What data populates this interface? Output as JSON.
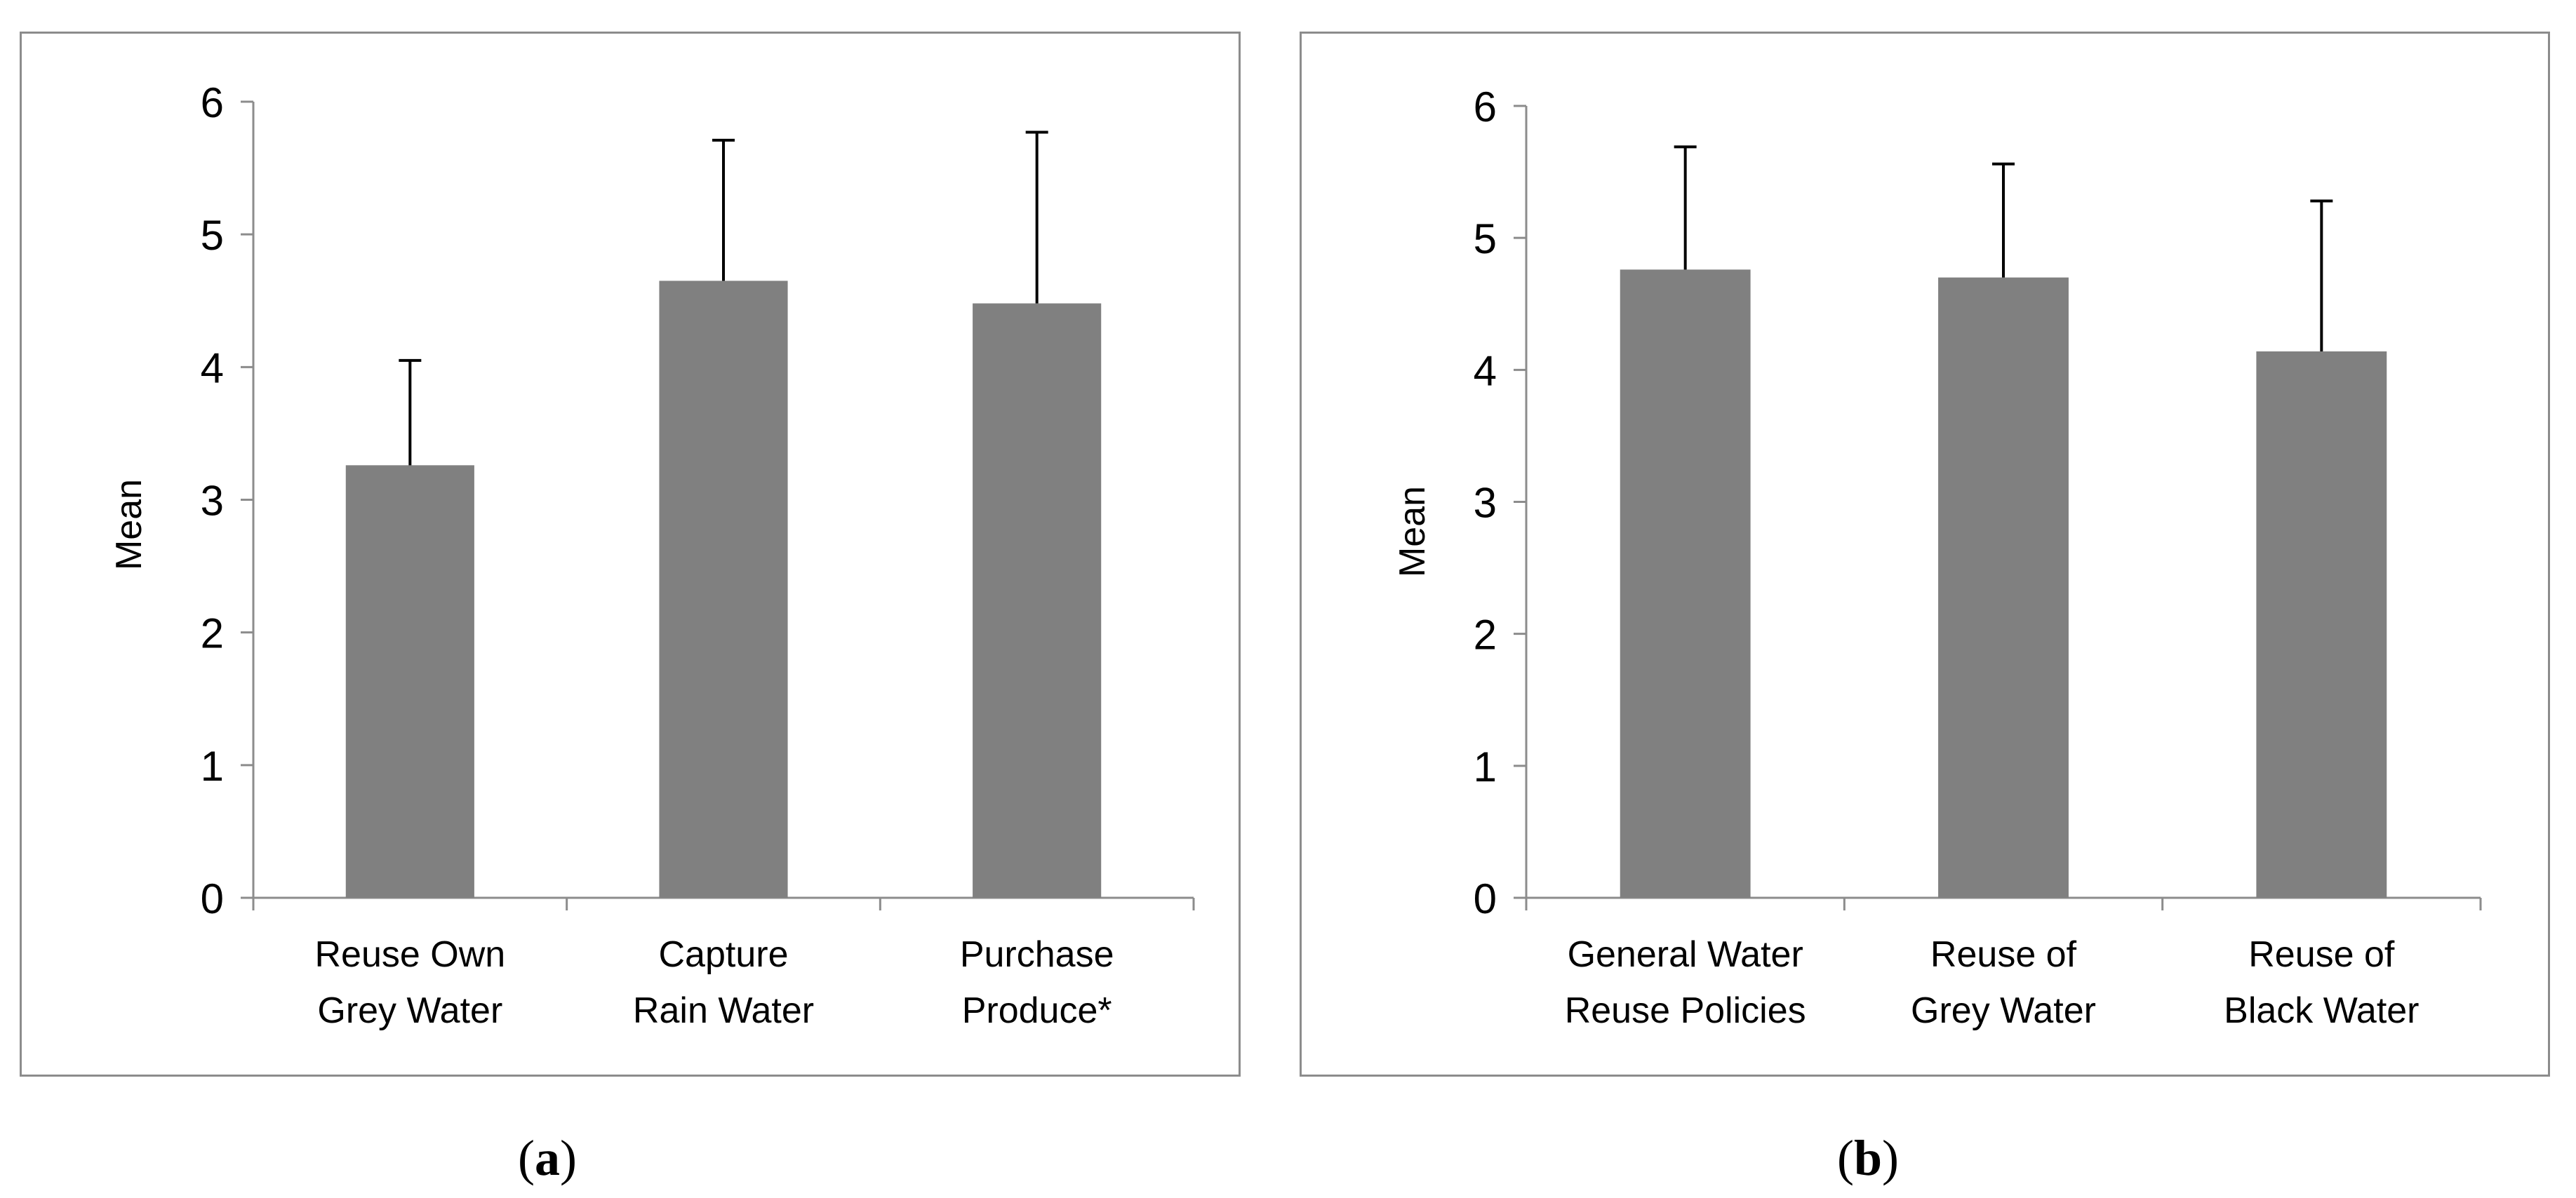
{
  "chart_data": [
    {
      "type": "bar",
      "panel": "a",
      "categories": [
        [
          "Reuse Own",
          "Grey Water"
        ],
        [
          "Capture",
          "Rain Water"
        ],
        [
          "Purchase",
          "Produce*"
        ]
      ],
      "values": [
        3.26,
        4.65,
        4.48
      ],
      "error_upper": [
        0.79,
        1.06,
        1.29
      ],
      "ylabel": "Mean",
      "ylim": [
        0,
        6
      ],
      "yticks": [
        "0",
        "1",
        "2",
        "3",
        "4",
        "5",
        "6"
      ],
      "grid": false,
      "bar_color": "#808080",
      "caption_letter": "a"
    },
    {
      "type": "bar",
      "panel": "b",
      "categories": [
        [
          "General Water",
          "Reuse Policies"
        ],
        [
          "Reuse of",
          "Grey Water"
        ],
        [
          "Reuse of",
          "Black Water"
        ]
      ],
      "values": [
        4.76,
        4.7,
        4.14
      ],
      "error_upper": [
        0.93,
        0.86,
        1.14
      ],
      "ylabel": "Mean",
      "ylim": [
        0,
        6
      ],
      "yticks": [
        "0",
        "1",
        "2",
        "3",
        "4",
        "5",
        "6"
      ],
      "grid": false,
      "bar_color": "#808080",
      "caption_letter": "b"
    }
  ],
  "captions": {
    "a_open": "(",
    "a_letter": "a",
    "a_close": ")",
    "b_open": "(",
    "b_letter": "b",
    "b_close": ")"
  }
}
